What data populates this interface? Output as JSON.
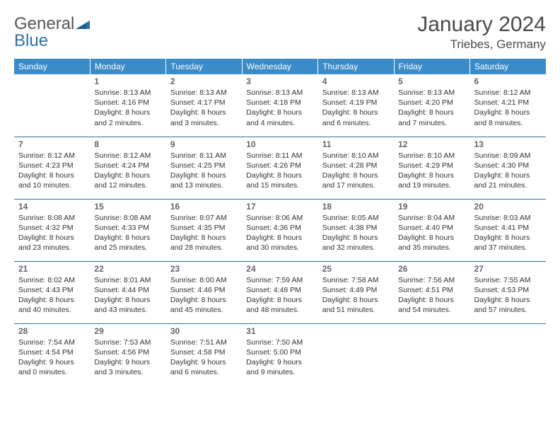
{
  "brand": {
    "part1": "General",
    "part2": "Blue"
  },
  "title": "January 2024",
  "location": "Triebes, Germany",
  "colors": {
    "header_bg": "#3b8bc9",
    "rule": "#2f6fa7",
    "logo_blue": "#2f6fa7",
    "text": "#333333",
    "daynum": "#666666"
  },
  "weekdays": [
    "Sunday",
    "Monday",
    "Tuesday",
    "Wednesday",
    "Thursday",
    "Friday",
    "Saturday"
  ],
  "weeks": [
    [
      null,
      {
        "n": "1",
        "sr": "Sunrise: 8:13 AM",
        "ss": "Sunset: 4:16 PM",
        "d1": "Daylight: 8 hours",
        "d2": "and 2 minutes."
      },
      {
        "n": "2",
        "sr": "Sunrise: 8:13 AM",
        "ss": "Sunset: 4:17 PM",
        "d1": "Daylight: 8 hours",
        "d2": "and 3 minutes."
      },
      {
        "n": "3",
        "sr": "Sunrise: 8:13 AM",
        "ss": "Sunset: 4:18 PM",
        "d1": "Daylight: 8 hours",
        "d2": "and 4 minutes."
      },
      {
        "n": "4",
        "sr": "Sunrise: 8:13 AM",
        "ss": "Sunset: 4:19 PM",
        "d1": "Daylight: 8 hours",
        "d2": "and 6 minutes."
      },
      {
        "n": "5",
        "sr": "Sunrise: 8:13 AM",
        "ss": "Sunset: 4:20 PM",
        "d1": "Daylight: 8 hours",
        "d2": "and 7 minutes."
      },
      {
        "n": "6",
        "sr": "Sunrise: 8:12 AM",
        "ss": "Sunset: 4:21 PM",
        "d1": "Daylight: 8 hours",
        "d2": "and 8 minutes."
      }
    ],
    [
      {
        "n": "7",
        "sr": "Sunrise: 8:12 AM",
        "ss": "Sunset: 4:23 PM",
        "d1": "Daylight: 8 hours",
        "d2": "and 10 minutes."
      },
      {
        "n": "8",
        "sr": "Sunrise: 8:12 AM",
        "ss": "Sunset: 4:24 PM",
        "d1": "Daylight: 8 hours",
        "d2": "and 12 minutes."
      },
      {
        "n": "9",
        "sr": "Sunrise: 8:11 AM",
        "ss": "Sunset: 4:25 PM",
        "d1": "Daylight: 8 hours",
        "d2": "and 13 minutes."
      },
      {
        "n": "10",
        "sr": "Sunrise: 8:11 AM",
        "ss": "Sunset: 4:26 PM",
        "d1": "Daylight: 8 hours",
        "d2": "and 15 minutes."
      },
      {
        "n": "11",
        "sr": "Sunrise: 8:10 AM",
        "ss": "Sunset: 4:28 PM",
        "d1": "Daylight: 8 hours",
        "d2": "and 17 minutes."
      },
      {
        "n": "12",
        "sr": "Sunrise: 8:10 AM",
        "ss": "Sunset: 4:29 PM",
        "d1": "Daylight: 8 hours",
        "d2": "and 19 minutes."
      },
      {
        "n": "13",
        "sr": "Sunrise: 8:09 AM",
        "ss": "Sunset: 4:30 PM",
        "d1": "Daylight: 8 hours",
        "d2": "and 21 minutes."
      }
    ],
    [
      {
        "n": "14",
        "sr": "Sunrise: 8:08 AM",
        "ss": "Sunset: 4:32 PM",
        "d1": "Daylight: 8 hours",
        "d2": "and 23 minutes."
      },
      {
        "n": "15",
        "sr": "Sunrise: 8:08 AM",
        "ss": "Sunset: 4:33 PM",
        "d1": "Daylight: 8 hours",
        "d2": "and 25 minutes."
      },
      {
        "n": "16",
        "sr": "Sunrise: 8:07 AM",
        "ss": "Sunset: 4:35 PM",
        "d1": "Daylight: 8 hours",
        "d2": "and 28 minutes."
      },
      {
        "n": "17",
        "sr": "Sunrise: 8:06 AM",
        "ss": "Sunset: 4:36 PM",
        "d1": "Daylight: 8 hours",
        "d2": "and 30 minutes."
      },
      {
        "n": "18",
        "sr": "Sunrise: 8:05 AM",
        "ss": "Sunset: 4:38 PM",
        "d1": "Daylight: 8 hours",
        "d2": "and 32 minutes."
      },
      {
        "n": "19",
        "sr": "Sunrise: 8:04 AM",
        "ss": "Sunset: 4:40 PM",
        "d1": "Daylight: 8 hours",
        "d2": "and 35 minutes."
      },
      {
        "n": "20",
        "sr": "Sunrise: 8:03 AM",
        "ss": "Sunset: 4:41 PM",
        "d1": "Daylight: 8 hours",
        "d2": "and 37 minutes."
      }
    ],
    [
      {
        "n": "21",
        "sr": "Sunrise: 8:02 AM",
        "ss": "Sunset: 4:43 PM",
        "d1": "Daylight: 8 hours",
        "d2": "and 40 minutes."
      },
      {
        "n": "22",
        "sr": "Sunrise: 8:01 AM",
        "ss": "Sunset: 4:44 PM",
        "d1": "Daylight: 8 hours",
        "d2": "and 43 minutes."
      },
      {
        "n": "23",
        "sr": "Sunrise: 8:00 AM",
        "ss": "Sunset: 4:46 PM",
        "d1": "Daylight: 8 hours",
        "d2": "and 45 minutes."
      },
      {
        "n": "24",
        "sr": "Sunrise: 7:59 AM",
        "ss": "Sunset: 4:48 PM",
        "d1": "Daylight: 8 hours",
        "d2": "and 48 minutes."
      },
      {
        "n": "25",
        "sr": "Sunrise: 7:58 AM",
        "ss": "Sunset: 4:49 PM",
        "d1": "Daylight: 8 hours",
        "d2": "and 51 minutes."
      },
      {
        "n": "26",
        "sr": "Sunrise: 7:56 AM",
        "ss": "Sunset: 4:51 PM",
        "d1": "Daylight: 8 hours",
        "d2": "and 54 minutes."
      },
      {
        "n": "27",
        "sr": "Sunrise: 7:55 AM",
        "ss": "Sunset: 4:53 PM",
        "d1": "Daylight: 8 hours",
        "d2": "and 57 minutes."
      }
    ],
    [
      {
        "n": "28",
        "sr": "Sunrise: 7:54 AM",
        "ss": "Sunset: 4:54 PM",
        "d1": "Daylight: 9 hours",
        "d2": "and 0 minutes."
      },
      {
        "n": "29",
        "sr": "Sunrise: 7:53 AM",
        "ss": "Sunset: 4:56 PM",
        "d1": "Daylight: 9 hours",
        "d2": "and 3 minutes."
      },
      {
        "n": "30",
        "sr": "Sunrise: 7:51 AM",
        "ss": "Sunset: 4:58 PM",
        "d1": "Daylight: 9 hours",
        "d2": "and 6 minutes."
      },
      {
        "n": "31",
        "sr": "Sunrise: 7:50 AM",
        "ss": "Sunset: 5:00 PM",
        "d1": "Daylight: 9 hours",
        "d2": "and 9 minutes."
      },
      null,
      null,
      null
    ]
  ]
}
